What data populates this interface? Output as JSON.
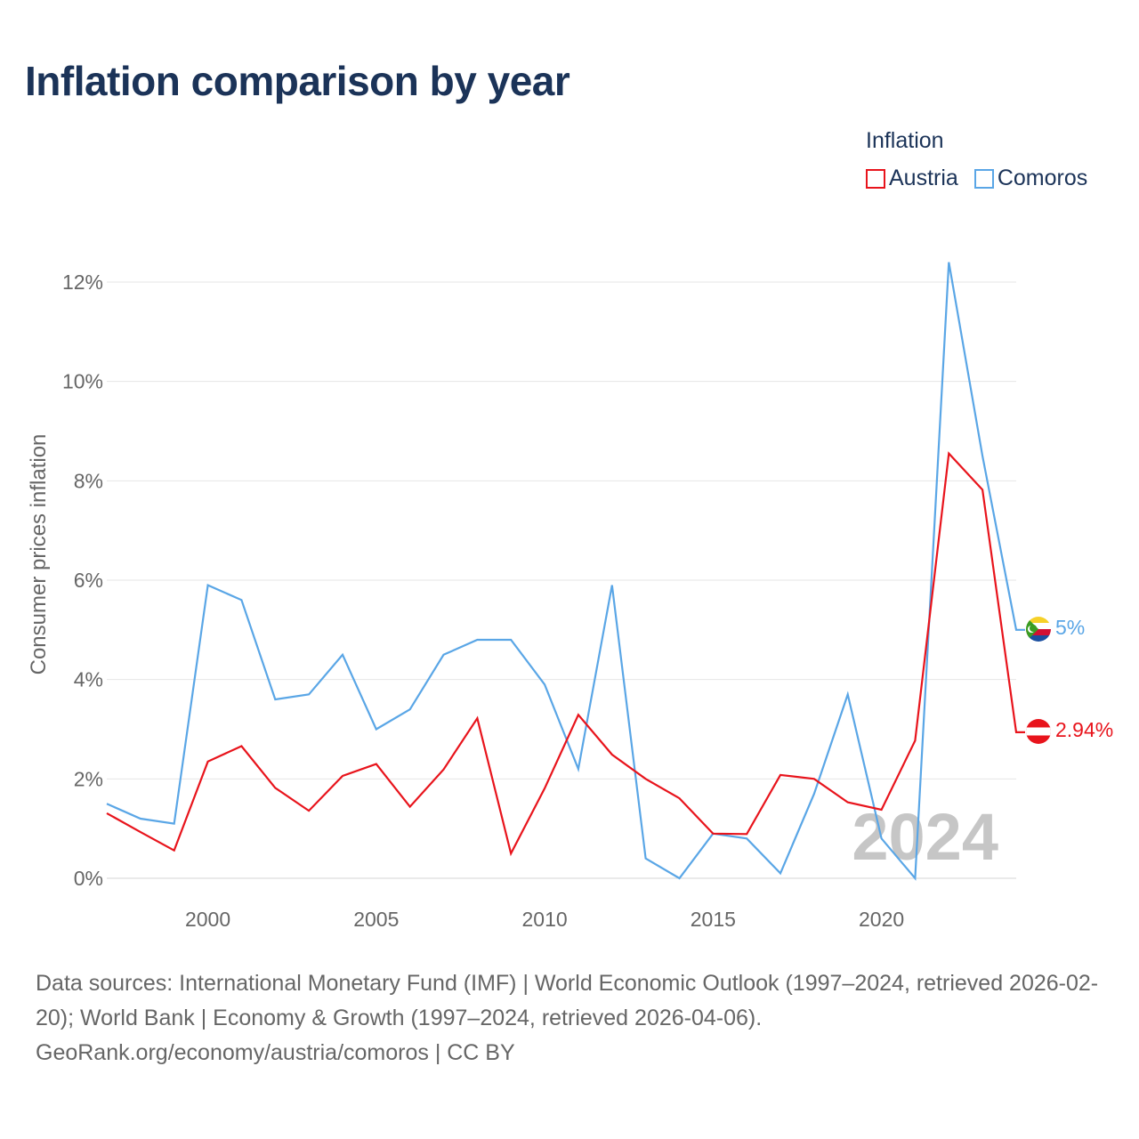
{
  "title": "Inflation comparison by year",
  "legend": {
    "title": "Inflation",
    "items": [
      {
        "name": "Austria",
        "color": "#e8141c"
      },
      {
        "name": "Comoros",
        "color": "#5aa6e6"
      }
    ]
  },
  "chart_data": {
    "type": "line",
    "title": "Inflation comparison by year",
    "xlabel": "",
    "ylabel": "Consumer prices inflation",
    "xlim": [
      1997,
      2024
    ],
    "ylim": [
      0,
      12
    ],
    "x_ticks": [
      2000,
      2005,
      2010,
      2015,
      2020
    ],
    "y_ticks": [
      0,
      2,
      4,
      6,
      8,
      10,
      12
    ],
    "y_tick_labels": [
      "0%",
      "2%",
      "4%",
      "6%",
      "8%",
      "10%",
      "12%"
    ],
    "grid": true,
    "year_watermark": "2024",
    "x": [
      1997,
      1998,
      1999,
      2000,
      2001,
      2002,
      2003,
      2004,
      2005,
      2006,
      2007,
      2008,
      2009,
      2010,
      2011,
      2012,
      2013,
      2014,
      2015,
      2016,
      2017,
      2018,
      2019,
      2020,
      2021,
      2022,
      2023,
      2024
    ],
    "series": [
      {
        "name": "Austria",
        "color": "#e8141c",
        "values": [
          1.31,
          0.93,
          0.56,
          2.35,
          2.66,
          1.82,
          1.36,
          2.06,
          2.3,
          1.44,
          2.19,
          3.22,
          0.5,
          1.81,
          3.29,
          2.49,
          2.0,
          1.61,
          0.9,
          0.89,
          2.08,
          2.0,
          1.53,
          1.38,
          2.77,
          8.55,
          7.82,
          2.94
        ],
        "end_label": "2.94%"
      },
      {
        "name": "Comoros",
        "color": "#5aa6e6",
        "values": [
          1.5,
          1.2,
          1.1,
          5.9,
          5.6,
          3.6,
          3.7,
          4.5,
          3.0,
          3.4,
          4.5,
          4.8,
          4.8,
          3.9,
          2.2,
          5.9,
          0.4,
          0.0,
          0.9,
          0.8,
          0.1,
          1.7,
          3.7,
          0.8,
          0.0,
          12.4,
          8.5,
          5.0
        ],
        "end_label": "5%"
      }
    ]
  },
  "source": {
    "line1": "Data sources: International Monetary Fund (IMF) | World Economic Outlook (1997–2024, retrieved 2026-02-20); World Bank | Economy & Growth (1997–2024, retrieved 2026-04-06).",
    "line2": "GeoRank.org/economy/austria/comoros | CC BY"
  }
}
